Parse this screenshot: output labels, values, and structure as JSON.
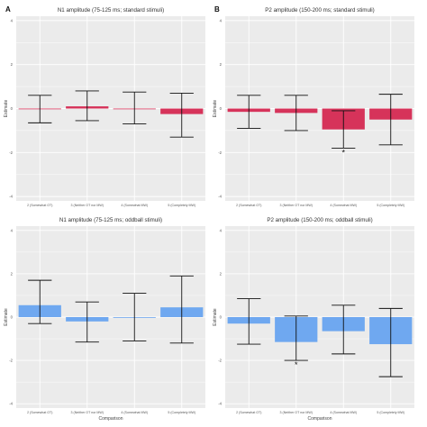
{
  "chart_data": [
    {
      "panel": "A",
      "type": "bar",
      "title": "N1 amplitude (75-125 ms; standard stimuli)",
      "ylabel": "Estimate",
      "xlabel": "",
      "categories": [
        "2 (Somewhat OT)",
        "3 (Neither OT nor MW)",
        "4 (Somewhat MW)",
        "5 (Completely MW)"
      ],
      "yticks": [
        "4",
        "2",
        "0",
        "-2",
        "-4"
      ],
      "ylim": [
        -4.2,
        4.2
      ],
      "grid": true,
      "color": "#d6335a",
      "series": [
        {
          "values": [
            0.0,
            0.1,
            0.0,
            -0.25
          ],
          "ci_low": [
            -0.65,
            -0.55,
            -0.7,
            -1.3
          ],
          "ci_high": [
            0.6,
            0.8,
            0.75,
            0.7
          ],
          "significant": [
            false,
            false,
            false,
            false
          ]
        }
      ]
    },
    {
      "panel": "B",
      "type": "bar",
      "title": "P2 amplitude (150-200 ms; standard stimuli)",
      "ylabel": "Estimate",
      "xlabel": "",
      "categories": [
        "2 (Somewhat OT)",
        "3 (Neither OT nor MW)",
        "4 (Somewhat MW)",
        "5 (Completely MW)"
      ],
      "yticks": [
        "4",
        "2",
        "0",
        "-2",
        "-4"
      ],
      "ylim": [
        -4.2,
        4.2
      ],
      "grid": true,
      "color": "#d6335a",
      "series": [
        {
          "values": [
            -0.15,
            -0.2,
            -0.95,
            -0.5
          ],
          "ci_low": [
            -0.9,
            -1.0,
            -1.8,
            -1.65
          ],
          "ci_high": [
            0.6,
            0.6,
            -0.1,
            0.65
          ],
          "significant": [
            false,
            false,
            true,
            false
          ]
        }
      ],
      "significance_marker": "*"
    },
    {
      "panel": "",
      "type": "bar",
      "title": "N1 amplitude (75-125 ms; oddball stimuli)",
      "ylabel": "Estimate",
      "xlabel": "Comparison",
      "categories": [
        "2 (Somewhat OT)",
        "3 (Neither OT nor MW)",
        "4 (Somewhat MW)",
        "5 (Completely MW)"
      ],
      "yticks": [
        "4",
        "2",
        "0",
        "-2",
        "-4"
      ],
      "ylim": [
        -4.2,
        4.2
      ],
      "grid": true,
      "color": "#6fa8f0",
      "series": [
        {
          "values": [
            0.55,
            -0.2,
            0.0,
            0.45
          ],
          "ci_low": [
            -0.3,
            -1.15,
            -1.1,
            -1.2
          ],
          "ci_high": [
            1.7,
            0.7,
            1.1,
            1.9
          ],
          "significant": [
            false,
            false,
            false,
            false
          ]
        }
      ]
    },
    {
      "panel": "",
      "type": "bar",
      "title": "P2 amplitude (150-200 ms; oddball stimuli)",
      "ylabel": "Estimate",
      "xlabel": "Comparison",
      "categories": [
        "2 (Somewhat OT)",
        "3 (Neither OT nor MW)",
        "4 (Somewhat MW)",
        "5 (Completely MW)"
      ],
      "yticks": [
        "4",
        "2",
        "0",
        "-2",
        "-4"
      ],
      "ylim": [
        -4.2,
        4.2
      ],
      "grid": true,
      "color": "#6fa8f0",
      "series": [
        {
          "values": [
            -0.3,
            -1.15,
            -0.65,
            -1.25
          ],
          "ci_low": [
            -1.25,
            -2.0,
            -1.7,
            -2.75
          ],
          "ci_high": [
            0.85,
            0.05,
            0.55,
            0.4
          ],
          "significant": [
            false,
            true,
            false,
            false
          ]
        }
      ],
      "significance_marker": "*"
    }
  ]
}
